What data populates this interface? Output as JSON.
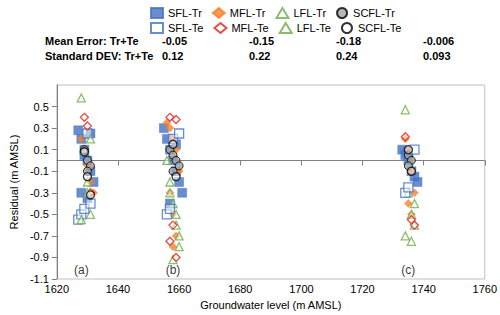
{
  "chart_data": {
    "type": "scatter",
    "x_label": "Groundwater level (m AMSL)",
    "y_label": "Residual (m AMSL)",
    "xlim": [
      1620,
      1760
    ],
    "xticks": [
      1620,
      1640,
      1660,
      1680,
      1700,
      1720,
      1740,
      1760
    ],
    "ylim": [
      -1.1,
      0.7
    ],
    "yticks": [
      -1.1,
      -0.9,
      -0.7,
      -0.5,
      -0.3,
      -0.1,
      0.1,
      0.3,
      0.5
    ],
    "grid": false,
    "legend": "top-right",
    "series": [
      {
        "name": "SFL-Tr",
        "color": "#4472c4",
        "marker": "square",
        "x": [
          1627,
          1628,
          1629,
          1630,
          1631,
          1632,
          1628,
          1630,
          1631,
          1629,
          1655,
          1656,
          1657,
          1658,
          1659,
          1660,
          1661,
          1657,
          1659,
          1733,
          1734,
          1735,
          1736,
          1737,
          1738,
          1735
        ],
        "values": [
          0.28,
          0.2,
          0.1,
          0.0,
          -0.1,
          -0.2,
          -0.3,
          -0.35,
          0.25,
          0.05,
          0.3,
          0.2,
          0.1,
          0.0,
          -0.1,
          -0.2,
          -0.3,
          -0.4,
          0.15,
          0.1,
          0.05,
          0.0,
          -0.1,
          -0.15,
          -0.2,
          0.08
        ]
      },
      {
        "name": "MFL-Tr",
        "color": "#f4812b",
        "marker": "diamond",
        "x": [
          1628,
          1629,
          1630,
          1631,
          1632,
          1656,
          1657,
          1658,
          1659,
          1660,
          1657,
          1658,
          1659,
          1658,
          1734,
          1735,
          1736,
          1737,
          1735,
          1736
        ],
        "values": [
          0.2,
          0.1,
          -0.05,
          -0.2,
          -0.3,
          0.35,
          0.3,
          0.2,
          0.1,
          -0.1,
          -0.3,
          -0.5,
          -0.7,
          -0.8,
          0.2,
          0.1,
          -0.1,
          -0.3,
          -0.4,
          -0.5
        ]
      },
      {
        "name": "LFL-Tr",
        "color": "#70ad47",
        "marker": "open-triangle",
        "x": [
          1628,
          1629,
          1630,
          1631,
          1656,
          1657,
          1658,
          1659,
          1660,
          1658,
          1734,
          1735,
          1736,
          1737
        ],
        "values": [
          0.58,
          0.1,
          -0.2,
          -0.5,
          0.0,
          -0.2,
          -0.4,
          -0.6,
          -0.8,
          -0.92,
          0.47,
          -0.3,
          -0.5,
          -0.6
        ]
      },
      {
        "name": "SCFL-Tr",
        "color": "#a6a6a6",
        "marker": "circle",
        "x": [
          1629,
          1630,
          1631,
          1630,
          1657,
          1658,
          1659,
          1660,
          1658,
          1735,
          1736,
          1735
        ],
        "values": [
          0.1,
          0.0,
          -0.05,
          -0.1,
          0.1,
          0.05,
          0.0,
          -0.05,
          -0.1,
          0.05,
          0.0,
          -0.05
        ]
      },
      {
        "name": "SFL-Te",
        "color": "#4472c4",
        "marker": "open-square",
        "x": [
          1627,
          1628,
          1629,
          1630,
          1631,
          1656,
          1657,
          1658,
          1660,
          1734,
          1735,
          1737
        ],
        "values": [
          -0.55,
          -0.5,
          -0.45,
          0.25,
          -0.4,
          -0.5,
          -0.45,
          0.2,
          0.25,
          -0.3,
          -0.25,
          0.1
        ]
      },
      {
        "name": "MFL-Te",
        "color": "#e0201b",
        "marker": "open-diamond",
        "x": [
          1629,
          1630,
          1631,
          1657,
          1659,
          1658,
          1657,
          1659,
          1734,
          1736,
          1737
        ],
        "values": [
          0.4,
          0.32,
          -0.3,
          0.4,
          0.38,
          -0.6,
          -0.75,
          -0.9,
          0.22,
          -0.55,
          -0.6
        ]
      },
      {
        "name": "LFL-Te",
        "color": "#70ad47",
        "marker": "open-triangle",
        "x": [
          1628,
          1630,
          1631,
          1657,
          1659,
          1660,
          1734,
          1736,
          1737
        ],
        "values": [
          -0.55,
          -0.3,
          0.2,
          -0.3,
          -0.5,
          -0.7,
          -0.7,
          -0.75,
          -0.4
        ]
      },
      {
        "name": "SCFL-Te",
        "color": "#000000",
        "marker": "open-circle",
        "x": [
          1629,
          1630,
          1631,
          1658,
          1659,
          1735,
          1736
        ],
        "values": [
          0.08,
          -0.15,
          -0.32,
          0.15,
          -0.15,
          0.1,
          -0.1
        ]
      }
    ],
    "summary": [
      {
        "label": "Mean Error: Tr+Te",
        "values": [
          -0.05,
          -0.15,
          -0.18,
          -0.006
        ]
      },
      {
        "label": "Standard DEV: Tr+Te",
        "values": [
          0.12,
          0.22,
          0.24,
          0.093
        ]
      }
    ],
    "annotations": [
      {
        "text": "(a)",
        "x": 1628,
        "y": -1.02
      },
      {
        "text": "(b)",
        "x": 1658,
        "y": -1.02
      },
      {
        "text": "(c)",
        "x": 1735,
        "y": -1.02
      }
    ]
  }
}
